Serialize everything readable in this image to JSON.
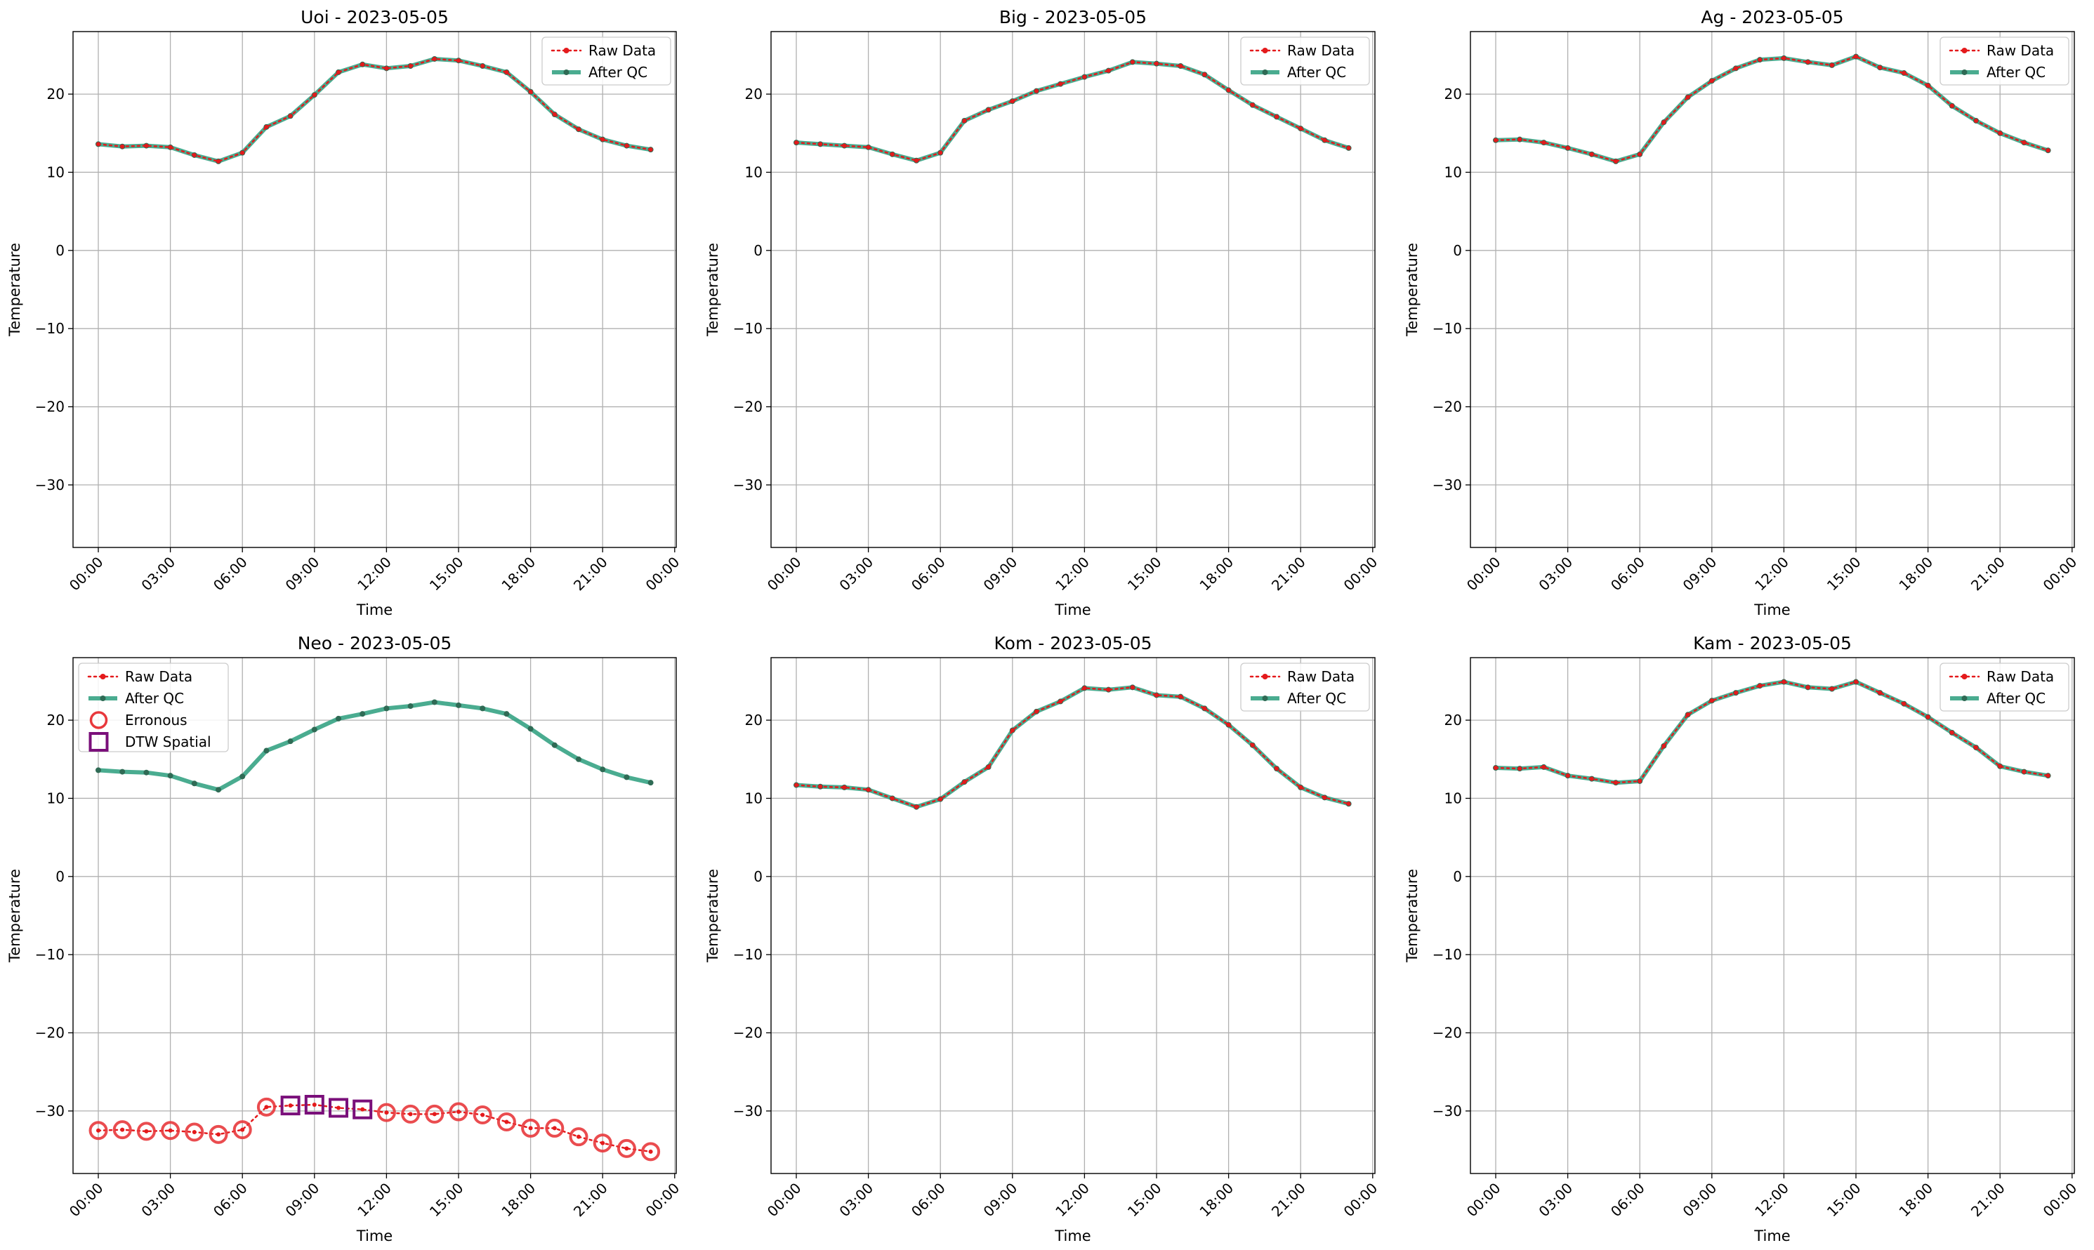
{
  "colors": {
    "raw": "#e41a1c",
    "qc": "#2a9d7c",
    "qc_marker": "#2f6b55",
    "erroneous": "#e8383c",
    "dtw": "#7a0f7a",
    "grid": "#b0b0b0"
  },
  "legend_labels": {
    "raw": "Raw Data",
    "qc": "After QC",
    "erroneous": "Erronous",
    "dtw": "DTW Spatial"
  },
  "chart_data": [
    {
      "type": "line",
      "title": "Uoi - 2023-05-05",
      "xlabel": "Time",
      "ylabel": "Temperature",
      "ylim": [
        -38,
        28
      ],
      "yticks": [
        20,
        10,
        0,
        -10,
        -20,
        -30
      ],
      "ytick_labels": [
        "20",
        "10",
        "0",
        "−10",
        "−20",
        "−30"
      ],
      "xtick_labels": [
        "00:00",
        "03:00",
        "06:00",
        "09:00",
        "12:00",
        "15:00",
        "18:00",
        "21:00",
        "00:00"
      ],
      "legend_position": "upper right",
      "raw": [
        13.6,
        13.3,
        13.4,
        13.2,
        12.2,
        11.4,
        12.5,
        15.8,
        17.2,
        19.9,
        22.8,
        23.8,
        23.3,
        23.6,
        24.5,
        24.3,
        23.6,
        22.8,
        20.3,
        17.4,
        15.5,
        14.2,
        13.4,
        12.9
      ],
      "qc": [
        13.6,
        13.3,
        13.4,
        13.2,
        12.2,
        11.4,
        12.5,
        15.8,
        17.2,
        19.9,
        22.8,
        23.8,
        23.3,
        23.6,
        24.5,
        24.3,
        23.6,
        22.8,
        20.3,
        17.4,
        15.5,
        14.2,
        13.4,
        12.9
      ],
      "erroneous_hours": [],
      "dtw_hours": []
    },
    {
      "type": "line",
      "title": "Big - 2023-05-05",
      "xlabel": "Time",
      "ylabel": "Temperature",
      "ylim": [
        -38,
        28
      ],
      "yticks": [
        20,
        10,
        0,
        -10,
        -20,
        -30
      ],
      "ytick_labels": [
        "20",
        "10",
        "0",
        "−10",
        "−20",
        "−30"
      ],
      "xtick_labels": [
        "00:00",
        "03:00",
        "06:00",
        "09:00",
        "12:00",
        "15:00",
        "18:00",
        "21:00",
        "00:00"
      ],
      "legend_position": "upper right",
      "raw": [
        13.8,
        13.6,
        13.4,
        13.2,
        12.3,
        11.5,
        12.5,
        16.6,
        18.0,
        19.1,
        20.4,
        21.3,
        22.2,
        23.0,
        24.1,
        23.9,
        23.6,
        22.5,
        20.5,
        18.6,
        17.1,
        15.6,
        14.1,
        13.1
      ],
      "qc": [
        13.8,
        13.6,
        13.4,
        13.2,
        12.3,
        11.5,
        12.5,
        16.6,
        18.0,
        19.1,
        20.4,
        21.3,
        22.2,
        23.0,
        24.1,
        23.9,
        23.6,
        22.5,
        20.5,
        18.6,
        17.1,
        15.6,
        14.1,
        13.1
      ],
      "erroneous_hours": [],
      "dtw_hours": []
    },
    {
      "type": "line",
      "title": "Ag - 2023-05-05",
      "xlabel": "Time",
      "ylabel": "Temperature",
      "ylim": [
        -38,
        28
      ],
      "yticks": [
        20,
        10,
        0,
        -10,
        -20,
        -30
      ],
      "ytick_labels": [
        "20",
        "10",
        "0",
        "−10",
        "−20",
        "−30"
      ],
      "xtick_labels": [
        "00:00",
        "03:00",
        "06:00",
        "09:00",
        "12:00",
        "15:00",
        "18:00",
        "21:00",
        "00:00"
      ],
      "legend_position": "upper right",
      "raw": [
        14.1,
        14.2,
        13.8,
        13.1,
        12.3,
        11.4,
        12.3,
        16.4,
        19.6,
        21.7,
        23.3,
        24.4,
        24.6,
        24.1,
        23.7,
        24.8,
        23.4,
        22.7,
        21.1,
        18.5,
        16.6,
        15.0,
        13.8,
        12.8
      ],
      "qc": [
        14.1,
        14.2,
        13.8,
        13.1,
        12.3,
        11.4,
        12.3,
        16.4,
        19.6,
        21.7,
        23.3,
        24.4,
        24.6,
        24.1,
        23.7,
        24.8,
        23.4,
        22.7,
        21.1,
        18.5,
        16.6,
        15.0,
        13.8,
        12.8
      ],
      "erroneous_hours": [],
      "dtw_hours": []
    },
    {
      "type": "line",
      "title": "Neo - 2023-05-05",
      "xlabel": "Time",
      "ylabel": "Temperature",
      "ylim": [
        -38,
        28
      ],
      "yticks": [
        20,
        10,
        0,
        -10,
        -20,
        -30
      ],
      "ytick_labels": [
        "20",
        "10",
        "0",
        "−10",
        "−20",
        "−30"
      ],
      "xtick_labels": [
        "00:00",
        "03:00",
        "06:00",
        "09:00",
        "12:00",
        "15:00",
        "18:00",
        "21:00",
        "00:00"
      ],
      "legend_position": "upper left",
      "raw": [
        -32.5,
        -32.4,
        -32.6,
        -32.5,
        -32.7,
        -33.0,
        -32.4,
        -29.5,
        -29.3,
        -29.2,
        -29.6,
        -29.8,
        -30.2,
        -30.4,
        -30.4,
        -30.1,
        -30.5,
        -31.4,
        -32.2,
        -32.2,
        -33.3,
        -34.1,
        -34.8,
        -35.2
      ],
      "qc": [
        13.6,
        13.4,
        13.3,
        12.9,
        11.9,
        11.1,
        12.8,
        16.1,
        17.3,
        18.8,
        20.2,
        20.8,
        21.5,
        21.8,
        22.3,
        21.9,
        21.5,
        20.8,
        18.9,
        16.8,
        15.0,
        13.7,
        12.7,
        12.0
      ],
      "erroneous_hours": [
        0,
        1,
        2,
        3,
        4,
        5,
        6,
        7,
        12,
        13,
        14,
        15,
        16,
        17,
        18,
        19,
        20,
        21,
        22,
        23
      ],
      "dtw_hours": [
        8,
        9,
        10,
        11
      ]
    },
    {
      "type": "line",
      "title": "Kom - 2023-05-05",
      "xlabel": "Time",
      "ylabel": "Temperature",
      "ylim": [
        -38,
        28
      ],
      "yticks": [
        20,
        10,
        0,
        -10,
        -20,
        -30
      ],
      "ytick_labels": [
        "20",
        "10",
        "0",
        "−10",
        "−20",
        "−30"
      ],
      "xtick_labels": [
        "00:00",
        "03:00",
        "06:00",
        "09:00",
        "12:00",
        "15:00",
        "18:00",
        "21:00",
        "00:00"
      ],
      "legend_position": "upper right",
      "raw": [
        11.7,
        11.5,
        11.4,
        11.1,
        10.0,
        8.9,
        9.9,
        12.1,
        14.0,
        18.7,
        21.1,
        22.4,
        24.1,
        23.9,
        24.2,
        23.2,
        23.0,
        21.5,
        19.4,
        16.8,
        13.8,
        11.4,
        10.1,
        9.3
      ],
      "qc": [
        11.7,
        11.5,
        11.4,
        11.1,
        10.0,
        8.9,
        9.9,
        12.1,
        14.0,
        18.7,
        21.1,
        22.4,
        24.1,
        23.9,
        24.2,
        23.2,
        23.0,
        21.5,
        19.4,
        16.8,
        13.8,
        11.4,
        10.1,
        9.3
      ],
      "erroneous_hours": [],
      "dtw_hours": []
    },
    {
      "type": "line",
      "title": "Kam - 2023-05-05",
      "xlabel": "Time",
      "ylabel": "Temperature",
      "ylim": [
        -38,
        28
      ],
      "yticks": [
        20,
        10,
        0,
        -10,
        -20,
        -30
      ],
      "ytick_labels": [
        "20",
        "10",
        "0",
        "−10",
        "−20",
        "−30"
      ],
      "xtick_labels": [
        "00:00",
        "03:00",
        "06:00",
        "09:00",
        "12:00",
        "15:00",
        "18:00",
        "21:00",
        "00:00"
      ],
      "legend_position": "upper right",
      "raw": [
        13.9,
        13.8,
        14.0,
        12.9,
        12.5,
        12.0,
        12.2,
        16.7,
        20.7,
        22.5,
        23.5,
        24.4,
        24.9,
        24.2,
        24.0,
        24.9,
        23.5,
        22.1,
        20.4,
        18.4,
        16.5,
        14.1,
        13.4,
        12.9
      ],
      "qc": [
        13.9,
        13.8,
        14.0,
        12.9,
        12.5,
        12.0,
        12.2,
        16.7,
        20.7,
        22.5,
        23.5,
        24.4,
        24.9,
        24.2,
        24.0,
        24.9,
        23.5,
        22.1,
        20.4,
        18.4,
        16.5,
        14.1,
        13.4,
        12.9
      ],
      "erroneous_hours": [],
      "dtw_hours": []
    }
  ]
}
